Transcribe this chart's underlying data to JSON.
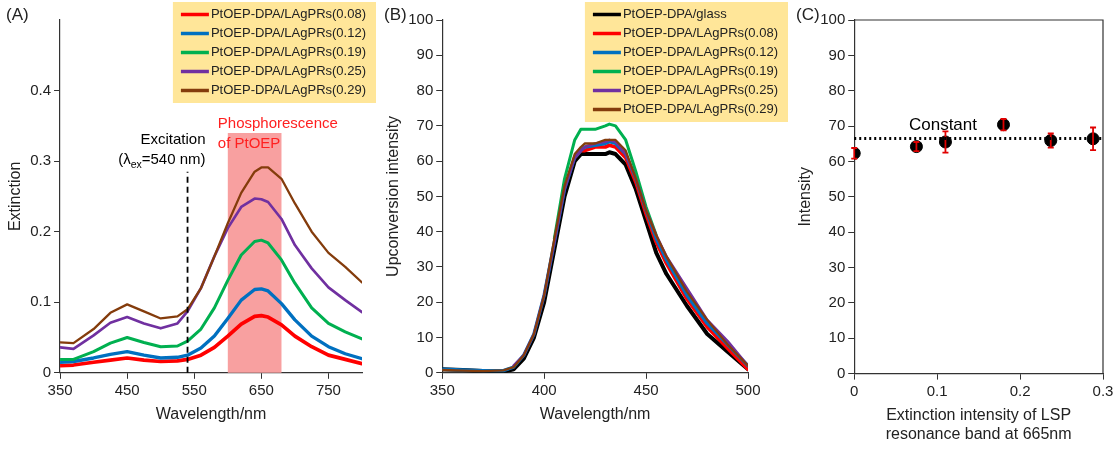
{
  "chart_data": [
    {
      "type": "line",
      "title": "(A)",
      "xlabel": "Wavelength/nm",
      "ylabel": "Extinction",
      "x": [
        350,
        370,
        400,
        425,
        450,
        475,
        500,
        525,
        540,
        560,
        580,
        600,
        620,
        640,
        650,
        660,
        680,
        700,
        725,
        750,
        775,
        800
      ],
      "series": [
        {
          "name": "PtOEP-DPA/LAgPRs(0.08)",
          "color": "#ff0000",
          "values": [
            0.01,
            0.011,
            0.015,
            0.018,
            0.021,
            0.018,
            0.016,
            0.017,
            0.019,
            0.025,
            0.036,
            0.052,
            0.069,
            0.08,
            0.081,
            0.079,
            0.068,
            0.052,
            0.037,
            0.025,
            0.019,
            0.013
          ]
        },
        {
          "name": "PtOEP-DPA/LAgPRs(0.12)",
          "color": "#0070c0",
          "values": [
            0.015,
            0.016,
            0.021,
            0.026,
            0.03,
            0.025,
            0.021,
            0.022,
            0.025,
            0.035,
            0.052,
            0.077,
            0.103,
            0.118,
            0.119,
            0.116,
            0.098,
            0.075,
            0.052,
            0.037,
            0.027,
            0.02
          ]
        },
        {
          "name": "PtOEP-DPA/LAgPRs(0.19)",
          "color": "#00b050",
          "values": [
            0.019,
            0.019,
            0.03,
            0.042,
            0.05,
            0.043,
            0.037,
            0.038,
            0.045,
            0.062,
            0.092,
            0.131,
            0.167,
            0.186,
            0.188,
            0.184,
            0.16,
            0.127,
            0.092,
            0.07,
            0.058,
            0.048
          ]
        },
        {
          "name": "PtOEP-DPA/LAgPRs(0.25)",
          "color": "#7030a0",
          "values": [
            0.036,
            0.034,
            0.053,
            0.071,
            0.079,
            0.07,
            0.063,
            0.07,
            0.087,
            0.12,
            0.165,
            0.205,
            0.235,
            0.247,
            0.246,
            0.242,
            0.218,
            0.181,
            0.148,
            0.121,
            0.103,
            0.086
          ]
        },
        {
          "name": "PtOEP-DPA/LAgPRs(0.29)",
          "color": "#843c0c",
          "values": [
            0.043,
            0.042,
            0.062,
            0.085,
            0.097,
            0.087,
            0.077,
            0.08,
            0.09,
            0.12,
            0.165,
            0.212,
            0.255,
            0.285,
            0.291,
            0.291,
            0.275,
            0.24,
            0.2,
            0.17,
            0.15,
            0.128
          ]
        }
      ],
      "xlim": [
        350,
        800
      ],
      "xticks": [
        350,
        450,
        550,
        650,
        750
      ],
      "ylim": [
        0,
        0.5
      ],
      "yticks": [
        0,
        0.1,
        0.2,
        0.3,
        0.4
      ],
      "ref_lines": [
        {
          "axis": "x",
          "value": 540,
          "label": "Excitation (λ$_{ex}$=540 nm)",
          "color": "#000000",
          "line_style": "dashed"
        }
      ],
      "bands": [
        {
          "axis": "x",
          "from": 600,
          "to": 680,
          "label": "Phosphorescence of PtOEP",
          "color": "#f8a0a0"
        }
      ],
      "legend": "top right",
      "grid": false,
      "marker": "none",
      "line_style": "solid"
    },
    {
      "type": "line",
      "title": "(B)",
      "xlabel": "Wavelength/nm",
      "ylabel": "Upconversion intensity",
      "x": [
        350,
        360,
        370,
        380,
        385,
        390,
        395,
        400,
        405,
        410,
        415,
        418,
        420,
        425,
        430,
        432,
        435,
        440,
        445,
        450,
        455,
        460,
        470,
        480,
        490,
        500
      ],
      "series": [
        {
          "name": "PtOEP-DPA/glass",
          "color": "#000000",
          "values": [
            1,
            0.8,
            0.5,
            0.3,
            1,
            4,
            10,
            20,
            35,
            50,
            60,
            62,
            62,
            62,
            62,
            62.5,
            62,
            59,
            52,
            43,
            34,
            28,
            19,
            11,
            6,
            1
          ]
        },
        {
          "name": "PtOEP-DPA/LAgPRs(0.08)",
          "color": "#ff0000",
          "values": [
            null,
            null,
            null,
            null,
            null,
            null,
            null,
            null,
            null,
            null,
            61,
            63,
            63,
            64,
            64,
            64.5,
            64,
            61,
            54,
            45,
            37,
            31,
            21,
            13,
            7,
            1
          ]
        },
        {
          "name": "PtOEP-DPA/LAgPRs(0.12)",
          "color": "#0070c0",
          "values": [
            1,
            0.8,
            0.6,
            0.6,
            1.6,
            5,
            11,
            22,
            37,
            52,
            61,
            63,
            64,
            64.5,
            65,
            65.5,
            65,
            62,
            55,
            46,
            38,
            32,
            22,
            14,
            8,
            2
          ]
        },
        {
          "name": "PtOEP-DPA/LAgPRs(0.19)",
          "color": "#00b050",
          "values": [
            null,
            null,
            null,
            null,
            null,
            null,
            null,
            null,
            38,
            55,
            66,
            69,
            69,
            69,
            70,
            70.5,
            70,
            66,
            57,
            47,
            39,
            null,
            null,
            null,
            null,
            null
          ]
        },
        {
          "name": "PtOEP-DPA/LAgPRs(0.25)",
          "color": "#7030a0",
          "values": [
            null,
            null,
            null,
            null,
            2,
            5,
            11,
            22,
            37,
            52,
            61,
            63,
            64,
            65,
            65.5,
            66,
            65.5,
            62,
            55,
            46,
            39,
            33,
            24,
            15,
            9,
            2
          ]
        },
        {
          "name": "PtOEP-DPA/LAgPRs(0.29)",
          "color": "#843c0c",
          "values": [
            0.8,
            0.6,
            0.5,
            0.7,
            1.6,
            5,
            11,
            22,
            38,
            53,
            62,
            64,
            65,
            65,
            66,
            66,
            66,
            63,
            55,
            46,
            39,
            33,
            23,
            15,
            8,
            2
          ]
        }
      ],
      "xlim": [
        350,
        500
      ],
      "xticks": [
        350,
        400,
        450,
        500
      ],
      "ylim": [
        0,
        100
      ],
      "yticks": [
        0,
        10,
        20,
        30,
        40,
        50,
        60,
        70,
        80,
        90,
        100
      ],
      "legend": "top right",
      "grid": false,
      "marker": "none",
      "line_style": "solid"
    },
    {
      "type": "scatter",
      "title": "(C)",
      "xlabel": "Extinction intensity of LSP resonance band at 665nm",
      "ylabel": "Intensity",
      "x": [
        0,
        0.075,
        0.11,
        0.18,
        0.237,
        0.288
      ],
      "values": [
        62.3,
        64.2,
        65.5,
        70.4,
        65.9,
        66.4
      ],
      "errors": [
        1.5,
        1.3,
        3,
        1.6,
        2,
        3.2
      ],
      "color": "#000000",
      "xlim": [
        0,
        0.3
      ],
      "xticks": [
        0,
        0.1,
        0.2,
        0.3
      ],
      "ylim": [
        0,
        100
      ],
      "yticks": [
        0,
        10,
        20,
        30,
        40,
        50,
        60,
        70,
        80,
        90,
        100
      ],
      "ref_lines": [
        {
          "axis": "y",
          "value": 66.5,
          "label": "Constant",
          "color": "#000000",
          "line_style": "dotted"
        }
      ],
      "grid": false,
      "marker": "circle"
    }
  ]
}
